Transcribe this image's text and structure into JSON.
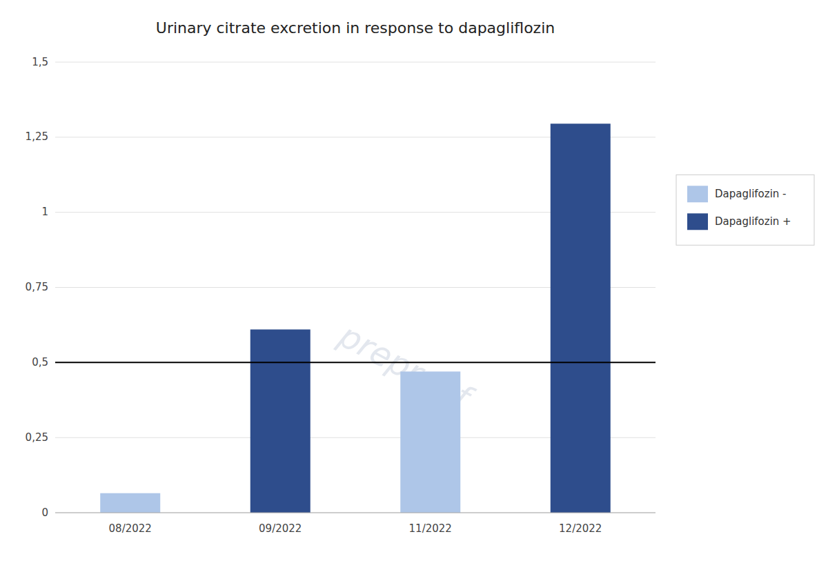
{
  "chart_data": {
    "type": "bar",
    "title": "Urinary citrate excretion in response to dapagliflozin",
    "categories": [
      "08/2022",
      "09/2022",
      "11/2022",
      "12/2022"
    ],
    "series": [
      {
        "name": "Dapaglifozin -",
        "color": "#aec6e8",
        "values": [
          0.065,
          null,
          0.47,
          null
        ]
      },
      {
        "name": "Dapaglifozin +",
        "color": "#2e4d8c",
        "values": [
          null,
          0.61,
          null,
          1.295
        ]
      }
    ],
    "reference_line": {
      "y": 0.5,
      "color": "#000000"
    },
    "ylim": [
      0,
      1.5
    ],
    "yticks": [
      0,
      {
        "value": 0.25,
        "label": "0,25"
      },
      {
        "value": 0.5,
        "label": "0,5"
      },
      {
        "value": 0.75,
        "label": "0,75"
      },
      1,
      {
        "value": 1.25,
        "label": "1,25"
      },
      {
        "value": 1.5,
        "label": "1,5"
      }
    ],
    "grid": true,
    "legend": "right",
    "watermark": {
      "text": "preproof",
      "color": "#c8d0de"
    }
  }
}
